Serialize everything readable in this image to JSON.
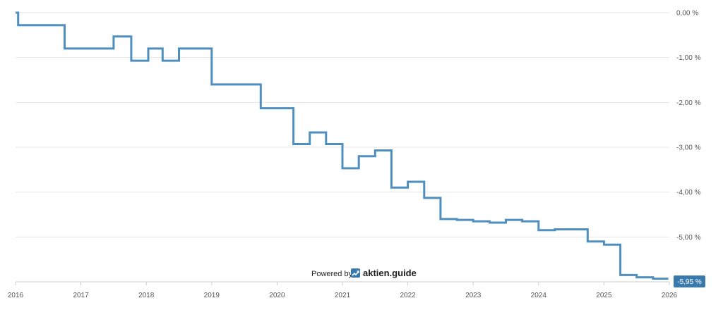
{
  "branding": {
    "powered_by": "Powered by",
    "brand_name": "aktien.guide",
    "icon": "trend-up-icon"
  },
  "colors": {
    "series": "#4f8fbf",
    "badge": "#3a79ab",
    "grid": "#e6e6e6"
  },
  "chart_data": {
    "type": "line",
    "step": true,
    "xlabel": "",
    "ylabel": "",
    "x_ticks": [
      "2016",
      "2017",
      "2018",
      "2019",
      "2020",
      "2021",
      "2022",
      "2023",
      "2024",
      "2025",
      "2026"
    ],
    "y_ticks": [
      "0,00 %",
      "-1,00 %",
      "-2,00 %",
      "-3,00 %",
      "-4,00 %",
      "-5,00 %"
    ],
    "y_tick_values": [
      0,
      -1,
      -2,
      -3,
      -4,
      -5
    ],
    "xlim": [
      2016.0,
      2026.0
    ],
    "ylim": [
      -6.0,
      0.0
    ],
    "grid": true,
    "y_axis_position": "right",
    "last_value_label": "-5,95 %",
    "series": [
      {
        "x": [
          2016.0,
          2016.04,
          2016.75,
          2017.5,
          2017.77,
          2018.03,
          2018.25,
          2018.5,
          2019.0,
          2019.75,
          2020.25,
          2020.5,
          2020.75,
          2021.0,
          2021.25,
          2021.5,
          2021.75,
          2022.0,
          2022.25,
          2022.5,
          2022.75,
          2023.0,
          2023.25,
          2023.5,
          2023.75,
          2024.0,
          2024.25,
          2024.75,
          2025.0,
          2025.25,
          2025.5,
          2025.75,
          2025.97
        ],
        "y": [
          0.0,
          -0.28,
          -0.8,
          -0.53,
          -1.07,
          -0.8,
          -1.07,
          -0.8,
          -1.6,
          -2.13,
          -2.93,
          -2.67,
          -2.93,
          -3.47,
          -3.2,
          -3.07,
          -3.9,
          -3.77,
          -4.13,
          -4.6,
          -4.62,
          -4.65,
          -4.68,
          -4.62,
          -4.65,
          -4.85,
          -4.83,
          -5.1,
          -5.17,
          -5.85,
          -5.9,
          -5.93,
          -5.95
        ]
      }
    ]
  }
}
